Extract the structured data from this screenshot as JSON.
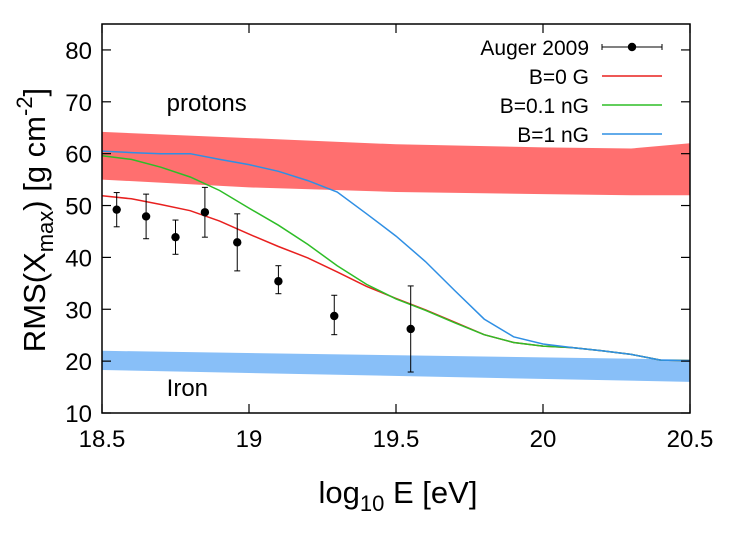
{
  "chart_data": {
    "type": "line",
    "title": "",
    "xlabel": {
      "main": "log",
      "sub": "10",
      "rest": " E [eV]"
    },
    "ylabel": {
      "pre": "RMS(X",
      "sub": "max",
      "mid": ") [g cm",
      "sup": "-2",
      "post": "]"
    },
    "xlim": [
      18.5,
      20.5
    ],
    "ylim": [
      10,
      85
    ],
    "x_ticks": [
      18.5,
      19,
      19.5,
      20,
      20.5
    ],
    "x_tick_labels": [
      "18.5",
      "19",
      "19.5",
      "20",
      "20.5"
    ],
    "y_ticks": [
      10,
      20,
      30,
      40,
      50,
      60,
      70,
      80
    ],
    "y_tick_labels": [
      "10",
      "20",
      "30",
      "40",
      "50",
      "60",
      "70",
      "80"
    ],
    "grid": false,
    "legend_position": "top-right",
    "bands": [
      {
        "label": "protons",
        "color": "#ff6f6f",
        "x": [
          18.5,
          19.0,
          19.5,
          20.0,
          20.3,
          20.5
        ],
        "lower": [
          55.0,
          53.5,
          52.6,
          52.2,
          52.0,
          52.0
        ],
        "upper": [
          64.2,
          63.0,
          61.8,
          61.2,
          61.0,
          62.0
        ],
        "label_pos": [
          18.72,
          70.0
        ]
      },
      {
        "label": "Iron",
        "color": "#88bff8",
        "x": [
          18.5,
          20.5
        ],
        "lower": [
          18.3,
          16.0
        ],
        "upper": [
          22.0,
          20.3
        ],
        "label_pos": [
          18.72,
          15.0
        ]
      }
    ],
    "series": [
      {
        "name": "Auger 2009",
        "kind": "points",
        "color": "#000000",
        "x": [
          18.55,
          18.65,
          18.75,
          18.85,
          18.96,
          19.1,
          19.29,
          19.55
        ],
        "y": [
          49.2,
          47.9,
          43.9,
          48.7,
          42.9,
          35.4,
          28.7,
          26.2
        ],
        "yerr_low": [
          3.3,
          4.3,
          3.3,
          4.8,
          5.5,
          2.4,
          3.6,
          8.3
        ],
        "yerr_high": [
          3.3,
          4.3,
          3.3,
          4.8,
          5.5,
          3.0,
          4.0,
          8.3
        ]
      },
      {
        "name": "B=0 G",
        "kind": "line",
        "color": "#e8201f",
        "x": [
          18.5,
          18.6,
          18.7,
          18.8,
          18.9,
          19.0,
          19.1,
          19.2,
          19.3,
          19.4,
          19.5,
          19.6,
          19.7,
          19.8,
          19.9,
          20.0,
          20.1,
          20.2,
          20.3,
          20.4,
          20.5
        ],
        "y": [
          51.9,
          51.3,
          50.2,
          49.0,
          47.0,
          44.5,
          42.1,
          39.9,
          37.2,
          34.4,
          32.1,
          29.9,
          27.5,
          25.1,
          23.6,
          22.9,
          22.6,
          22.0,
          21.3,
          20.2,
          20.1
        ]
      },
      {
        "name": "B=0.1 nG",
        "kind": "line",
        "color": "#2ebd27",
        "x": [
          18.5,
          18.6,
          18.7,
          18.8,
          18.9,
          19.0,
          19.1,
          19.2,
          19.3,
          19.4,
          19.5,
          19.6,
          19.7,
          19.8,
          19.9,
          20.0,
          20.1,
          20.2,
          20.3,
          20.4,
          20.5
        ],
        "y": [
          59.6,
          58.9,
          57.4,
          55.5,
          52.9,
          49.5,
          46.2,
          42.5,
          38.4,
          34.8,
          32.0,
          29.8,
          27.4,
          25.1,
          23.6,
          22.9,
          22.6,
          22.0,
          21.3,
          20.2,
          20.1
        ]
      },
      {
        "name": "B=1 nG",
        "kind": "line",
        "color": "#2f8fe4",
        "x": [
          18.5,
          18.6,
          18.7,
          18.8,
          18.9,
          19.0,
          19.1,
          19.2,
          19.3,
          19.4,
          19.5,
          19.6,
          19.7,
          19.8,
          19.9,
          20.0,
          20.1,
          20.2,
          20.3,
          20.4,
          20.5
        ],
        "y": [
          60.5,
          60.2,
          60.0,
          60.0,
          58.9,
          57.9,
          56.6,
          54.8,
          52.6,
          48.4,
          44.1,
          39.2,
          33.6,
          28.1,
          24.7,
          23.3,
          22.6,
          22.0,
          21.3,
          20.2,
          20.1
        ]
      }
    ]
  }
}
